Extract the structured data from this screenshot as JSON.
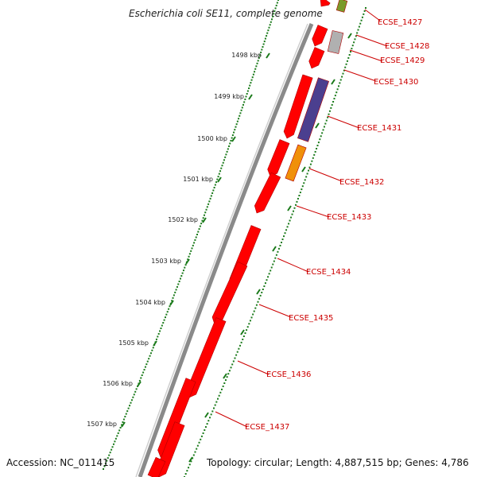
{
  "title": "Escherichia coli SE11, complete genome",
  "footer": {
    "accession": "Accession: NC_011415",
    "summary": "Topology: circular; Length: 4,887,515 bp; Genes: 4,786"
  },
  "ticks": [
    "1498 kbp",
    "1499 kbp",
    "1500 kbp",
    "1501 kbp",
    "1502 kbp",
    "1503 kbp",
    "1504 kbp",
    "1505 kbp",
    "1506 kbp",
    "1507 kbp"
  ],
  "genes": [
    "ECSE_1427",
    "ECSE_1428",
    "ECSE_1429",
    "ECSE_1430",
    "ECSE_1431",
    "ECSE_1432",
    "ECSE_1433",
    "ECSE_1434",
    "ECSE_1435",
    "ECSE_1436",
    "ECSE_1437"
  ],
  "colors": {
    "cds": "#ff0000",
    "backbone": "#808080",
    "tick": "#1a7a1a",
    "gene_label": "#cc0000",
    "purple": "#4b3f8f",
    "orange": "#f0900a",
    "grey": "#b0b0b0",
    "olive": "#7a9a2a"
  }
}
